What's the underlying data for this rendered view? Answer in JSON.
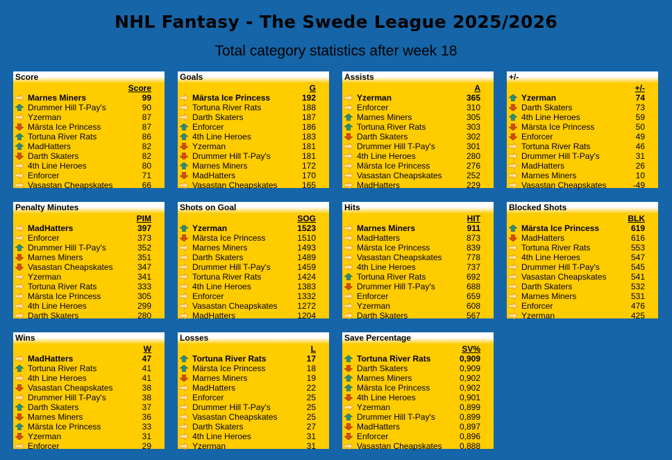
{
  "title": "NHL Fantasy - The Swede League 2025/2026",
  "subtitle": "Total category statistics after week 18",
  "colors": {
    "background": "#1565a8",
    "panel": "#ffcc00",
    "up": "#2e8b7a",
    "down": "#d84a10",
    "same": "#e89a30"
  },
  "panels": [
    {
      "title": "Score",
      "col": "Score",
      "rows": [
        {
          "trend": "same",
          "team": "Marnes Miners",
          "value": "99"
        },
        {
          "trend": "up",
          "team": "Drummer Hill T-Pay's",
          "value": "90"
        },
        {
          "trend": "same",
          "team": "Yzerman",
          "value": "87"
        },
        {
          "trend": "down",
          "team": "Märsta Ice Princess",
          "value": "87"
        },
        {
          "trend": "up",
          "team": "Tortuna River Rats",
          "value": "86"
        },
        {
          "trend": "up",
          "team": "MadHatters",
          "value": "82"
        },
        {
          "trend": "down",
          "team": "Darth Skaters",
          "value": "82"
        },
        {
          "trend": "same",
          "team": "4th Line Heroes",
          "value": "80"
        },
        {
          "trend": "same",
          "team": "Enforcer",
          "value": "71"
        },
        {
          "trend": "same",
          "team": "Vasastan Cheapskates",
          "value": "66"
        }
      ]
    },
    {
      "title": "Goals",
      "col": "G",
      "rows": [
        {
          "trend": "same",
          "team": "Märsta Ice Princess",
          "value": "192"
        },
        {
          "trend": "same",
          "team": "Tortuna River Rats",
          "value": "188"
        },
        {
          "trend": "same",
          "team": "Darth Skaters",
          "value": "187"
        },
        {
          "trend": "up",
          "team": "Enforcer",
          "value": "186"
        },
        {
          "trend": "up",
          "team": "4th Line Heroes",
          "value": "183"
        },
        {
          "trend": "down",
          "team": "Yzerman",
          "value": "181"
        },
        {
          "trend": "down",
          "team": "Drummer Hill T-Pay's",
          "value": "181"
        },
        {
          "trend": "up",
          "team": "Marnes Miners",
          "value": "172"
        },
        {
          "trend": "down",
          "team": "MadHatters",
          "value": "170"
        },
        {
          "trend": "same",
          "team": "Vasastan Cheapskates",
          "value": "165"
        }
      ]
    },
    {
      "title": "Assists",
      "col": "A",
      "rows": [
        {
          "trend": "same",
          "team": "Yzerman",
          "value": "365"
        },
        {
          "trend": "same",
          "team": "Enforcer",
          "value": "310"
        },
        {
          "trend": "up",
          "team": "Marnes Miners",
          "value": "305"
        },
        {
          "trend": "up",
          "team": "Tortuna River Rats",
          "value": "303"
        },
        {
          "trend": "down",
          "team": "Darth Skaters",
          "value": "302"
        },
        {
          "trend": "same",
          "team": "Drummer Hill T-Pay's",
          "value": "301"
        },
        {
          "trend": "same",
          "team": "4th Line Heroes",
          "value": "280"
        },
        {
          "trend": "same",
          "team": "Märsta Ice Princess",
          "value": "276"
        },
        {
          "trend": "same",
          "team": "Vasastan Cheapskates",
          "value": "252"
        },
        {
          "trend": "same",
          "team": "MadHatters",
          "value": "229"
        }
      ]
    },
    {
      "title": "+/-",
      "col": "+/-",
      "rows": [
        {
          "trend": "up",
          "team": "Yzerman",
          "value": "74"
        },
        {
          "trend": "down",
          "team": "Darth Skaters",
          "value": "73"
        },
        {
          "trend": "up",
          "team": "4th Line Heroes",
          "value": "59"
        },
        {
          "trend": "down",
          "team": "Märsta Ice Princess",
          "value": "50"
        },
        {
          "trend": "down",
          "team": "Enforcer",
          "value": "49"
        },
        {
          "trend": "same",
          "team": "Tortuna River Rats",
          "value": "46"
        },
        {
          "trend": "same",
          "team": "Drummer Hill T-Pay's",
          "value": "31"
        },
        {
          "trend": "same",
          "team": "MadHatters",
          "value": "26"
        },
        {
          "trend": "same",
          "team": "Marnes Miners",
          "value": "10"
        },
        {
          "trend": "same",
          "team": "Vasastan Cheapskates",
          "value": "-49"
        }
      ]
    },
    {
      "title": "Penalty Minutes",
      "col": "PIM",
      "rows": [
        {
          "trend": "same",
          "team": "MadHatters",
          "value": "397"
        },
        {
          "trend": "same",
          "team": "Enforcer",
          "value": "373"
        },
        {
          "trend": "up",
          "team": "Drummer Hill T-Pay's",
          "value": "352"
        },
        {
          "trend": "down",
          "team": "Marnes Miners",
          "value": "351"
        },
        {
          "trend": "down",
          "team": "Vasastan Cheapskates",
          "value": "347"
        },
        {
          "trend": "same",
          "team": "Yzerman",
          "value": "341"
        },
        {
          "trend": "same",
          "team": "Tortuna River Rats",
          "value": "333"
        },
        {
          "trend": "same",
          "team": "Märsta Ice Princess",
          "value": "305"
        },
        {
          "trend": "same",
          "team": "4th Line Heroes",
          "value": "299"
        },
        {
          "trend": "same",
          "team": "Darth Skaters",
          "value": "280"
        }
      ]
    },
    {
      "title": "Shots on Goal",
      "col": "SOG",
      "rows": [
        {
          "trend": "up",
          "team": "Yzerman",
          "value": "1523"
        },
        {
          "trend": "down",
          "team": "Märsta Ice Princess",
          "value": "1510"
        },
        {
          "trend": "same",
          "team": "Marnes Miners",
          "value": "1493"
        },
        {
          "trend": "same",
          "team": "Darth Skaters",
          "value": "1489"
        },
        {
          "trend": "same",
          "team": "Drummer Hill T-Pay's",
          "value": "1459"
        },
        {
          "trend": "same",
          "team": "Tortuna River Rats",
          "value": "1424"
        },
        {
          "trend": "same",
          "team": "4th Line Heroes",
          "value": "1383"
        },
        {
          "trend": "same",
          "team": "Enforcer",
          "value": "1332"
        },
        {
          "trend": "same",
          "team": "Vasastan Cheapskates",
          "value": "1272"
        },
        {
          "trend": "same",
          "team": "MadHatters",
          "value": "1204"
        }
      ]
    },
    {
      "title": "Hits",
      "col": "HIT",
      "rows": [
        {
          "trend": "same",
          "team": "Marnes Miners",
          "value": "911"
        },
        {
          "trend": "same",
          "team": "MadHatters",
          "value": "873"
        },
        {
          "trend": "same",
          "team": "Märsta Ice Princess",
          "value": "839"
        },
        {
          "trend": "same",
          "team": "Vasastan Cheapskates",
          "value": "778"
        },
        {
          "trend": "same",
          "team": "4th Line Heroes",
          "value": "737"
        },
        {
          "trend": "up",
          "team": "Tortuna River Rats",
          "value": "692"
        },
        {
          "trend": "down",
          "team": "Drummer Hill T-Pay's",
          "value": "688"
        },
        {
          "trend": "same",
          "team": "Enforcer",
          "value": "659"
        },
        {
          "trend": "same",
          "team": "Yzerman",
          "value": "608"
        },
        {
          "trend": "same",
          "team": "Darth Skaters",
          "value": "567"
        }
      ]
    },
    {
      "title": "Blocked Shots",
      "col": "BLK",
      "rows": [
        {
          "trend": "up",
          "team": "Märsta Ice Princess",
          "value": "619"
        },
        {
          "trend": "down",
          "team": "MadHatters",
          "value": "616"
        },
        {
          "trend": "same",
          "team": "Tortuna River Rats",
          "value": "553"
        },
        {
          "trend": "same",
          "team": "4th Line Heroes",
          "value": "547"
        },
        {
          "trend": "same",
          "team": "Drummer Hill T-Pay's",
          "value": "545"
        },
        {
          "trend": "same",
          "team": "Vasastan Cheapskates",
          "value": "541"
        },
        {
          "trend": "same",
          "team": "Darth Skaters",
          "value": "532"
        },
        {
          "trend": "same",
          "team": "Marnes Miners",
          "value": "531"
        },
        {
          "trend": "same",
          "team": "Enforcer",
          "value": "476"
        },
        {
          "trend": "same",
          "team": "Yzerman",
          "value": "425"
        }
      ]
    },
    {
      "title": "Wins",
      "col": "W",
      "rows": [
        {
          "trend": "same",
          "team": "MadHatters",
          "value": "47"
        },
        {
          "trend": "up",
          "team": "Tortuna River Rats",
          "value": "41"
        },
        {
          "trend": "same",
          "team": "4th Line Heroes",
          "value": "41"
        },
        {
          "trend": "down",
          "team": "Vasastan Cheapskates",
          "value": "38"
        },
        {
          "trend": "same",
          "team": "Drummer Hill T-Pay's",
          "value": "38"
        },
        {
          "trend": "up",
          "team": "Darth Skaters",
          "value": "37"
        },
        {
          "trend": "down",
          "team": "Marnes Miners",
          "value": "36"
        },
        {
          "trend": "up",
          "team": "Märsta Ice Princess",
          "value": "33"
        },
        {
          "trend": "down",
          "team": "Yzerman",
          "value": "31"
        },
        {
          "trend": "same",
          "team": "Enforcer",
          "value": "29"
        }
      ]
    },
    {
      "title": "Losses",
      "col": "L",
      "rows": [
        {
          "trend": "up",
          "team": "Tortuna River Rats",
          "value": "17"
        },
        {
          "trend": "up",
          "team": "Märsta Ice Princess",
          "value": "18"
        },
        {
          "trend": "down",
          "team": "Marnes Miners",
          "value": "19"
        },
        {
          "trend": "same",
          "team": "MadHatters",
          "value": "22"
        },
        {
          "trend": "same",
          "team": "Enforcer",
          "value": "25"
        },
        {
          "trend": "same",
          "team": "Drummer Hill T-Pay's",
          "value": "25"
        },
        {
          "trend": "same",
          "team": "Vasastan Cheapskates",
          "value": "25"
        },
        {
          "trend": "same",
          "team": "Darth Skaters",
          "value": "27"
        },
        {
          "trend": "same",
          "team": "4th Line Heroes",
          "value": "31"
        },
        {
          "trend": "same",
          "team": "Yzerman",
          "value": "31"
        }
      ]
    },
    {
      "title": "Save Percentage",
      "col": "SV%",
      "rows": [
        {
          "trend": "up",
          "team": "Tortuna River Rats",
          "value": "0,909"
        },
        {
          "trend": "down",
          "team": "Darth Skaters",
          "value": "0,909"
        },
        {
          "trend": "up",
          "team": "Marnes Miners",
          "value": "0,902"
        },
        {
          "trend": "up",
          "team": "Märsta Ice Princess",
          "value": "0,902"
        },
        {
          "trend": "down",
          "team": "4th Line Heroes",
          "value": "0,901"
        },
        {
          "trend": "same",
          "team": "Yzerman",
          "value": "0,899"
        },
        {
          "trend": "up",
          "team": "Drummer Hill T-Pay's",
          "value": "0,899"
        },
        {
          "trend": "down",
          "team": "MadHatters",
          "value": "0,897"
        },
        {
          "trend": "down",
          "team": "Enforcer",
          "value": "0,896"
        },
        {
          "trend": "same",
          "team": "Vasastan Cheapskates",
          "value": "0,888"
        }
      ]
    }
  ]
}
